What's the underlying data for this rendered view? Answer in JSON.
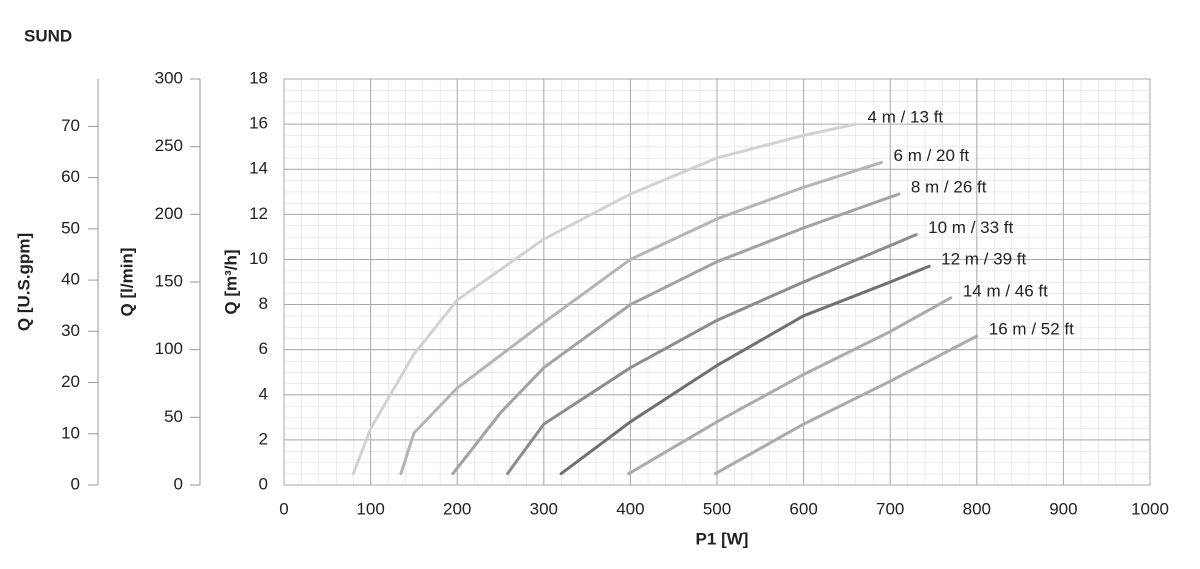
{
  "chart_data": {
    "type": "line",
    "title": "SUND",
    "x_label": "P1 [W]",
    "y_label": "Q [m³/h]",
    "y2_label": "Q [l/min]",
    "y3_label": "Q [U.S.gpm]",
    "xlim": [
      0,
      1000
    ],
    "xticks": [
      0,
      100,
      200,
      300,
      400,
      500,
      600,
      700,
      800,
      900,
      1000
    ],
    "ylim": [
      0,
      18
    ],
    "yticks": [
      0,
      2,
      4,
      6,
      8,
      10,
      12,
      14,
      16,
      18
    ],
    "y2lim": [
      0,
      300
    ],
    "y2ticks": [
      0,
      50,
      100,
      150,
      200,
      250,
      300
    ],
    "y3lim": [
      0,
      79.25
    ],
    "y3ticks": [
      0,
      10,
      20,
      30,
      40,
      50,
      60,
      70
    ],
    "grid": true,
    "series": [
      {
        "name": "4 m / 13 ft",
        "color": "#d2d2d2",
        "x": [
          80,
          100,
          150,
          200,
          300,
          400,
          500,
          600,
          660
        ],
        "values": [
          0.5,
          2.5,
          5.8,
          8.2,
          10.9,
          12.9,
          14.5,
          15.5,
          16.0
        ]
      },
      {
        "name": "6 m / 20 ft",
        "color": "#b4b4b4",
        "x": [
          135,
          150,
          200,
          300,
          400,
          500,
          600,
          690
        ],
        "values": [
          0.5,
          2.3,
          4.3,
          7.2,
          10.0,
          11.8,
          13.2,
          14.3
        ]
      },
      {
        "name": "8 m / 26 ft",
        "color": "#a2a2a2",
        "x": [
          195,
          250,
          300,
          400,
          500,
          600,
          710
        ],
        "values": [
          0.5,
          3.2,
          5.2,
          8.0,
          9.9,
          11.4,
          12.9
        ]
      },
      {
        "name": "10 m / 33 ft",
        "color": "#8c8c8c",
        "x": [
          258,
          300,
          400,
          500,
          600,
          730
        ],
        "values": [
          0.5,
          2.7,
          5.2,
          7.3,
          9.0,
          11.1
        ]
      },
      {
        "name": "12 m / 39 ft",
        "color": "#707070",
        "x": [
          320,
          400,
          500,
          600,
          700,
          745
        ],
        "values": [
          0.5,
          2.8,
          5.3,
          7.5,
          9.0,
          9.7
        ]
      },
      {
        "name": "14 m / 46 ft",
        "color": "#ababab",
        "x": [
          398,
          500,
          600,
          700,
          770
        ],
        "values": [
          0.5,
          2.8,
          4.9,
          6.8,
          8.3
        ]
      },
      {
        "name": "16 m / 52 ft",
        "color": "#ababab",
        "x": [
          498,
          600,
          700,
          800
        ],
        "values": [
          0.5,
          2.7,
          4.6,
          6.6
        ]
      }
    ]
  }
}
